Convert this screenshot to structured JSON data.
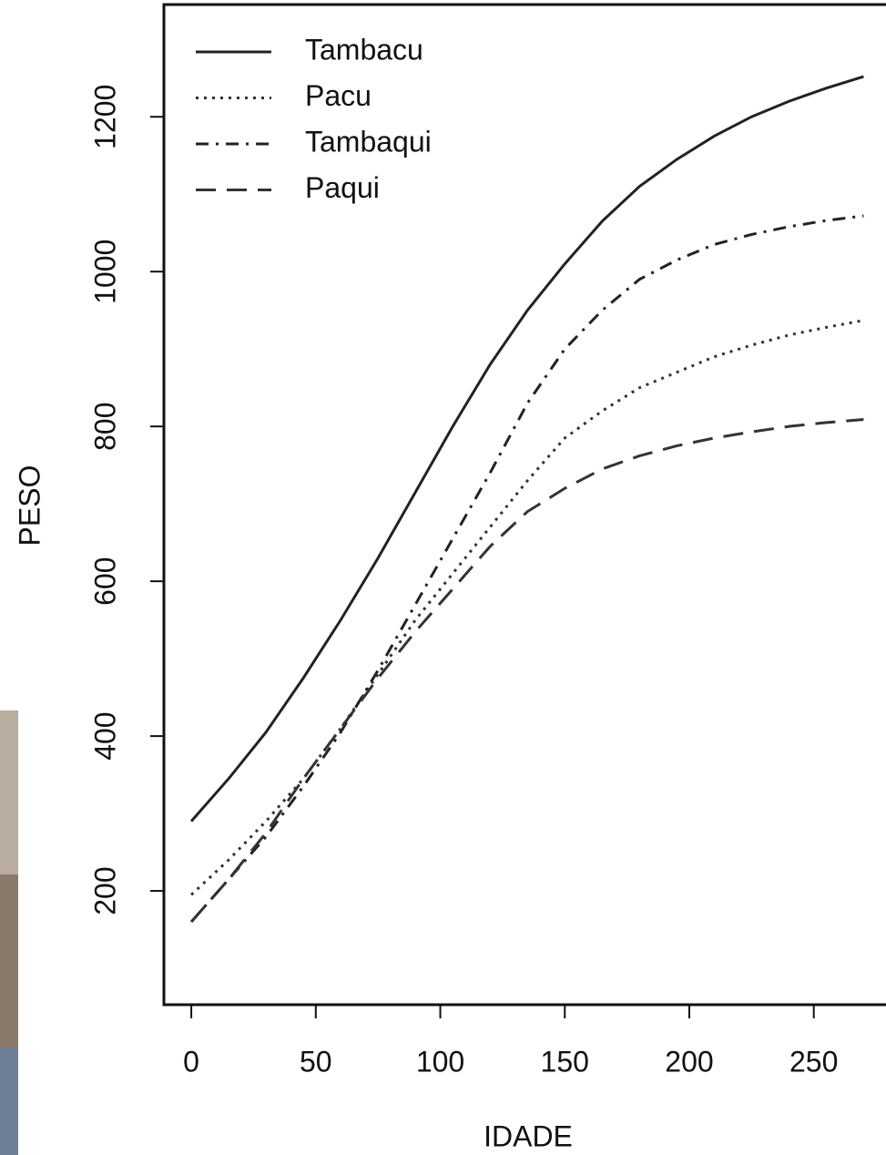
{
  "chart_data": {
    "type": "line",
    "x_label": "IDADE",
    "y_label": "PESO",
    "x": [
      0,
      15,
      30,
      45,
      60,
      75,
      90,
      105,
      120,
      135,
      150,
      165,
      180,
      195,
      210,
      225,
      240,
      255,
      270
    ],
    "series": [
      {
        "name": "Tambacu",
        "color": "#222222",
        "line_style": "solid",
        "values": [
          290,
          345,
          405,
          475,
          550,
          630,
          715,
          800,
          880,
          950,
          1010,
          1065,
          1110,
          1145,
          1175,
          1200,
          1220,
          1237,
          1252
        ]
      },
      {
        "name": "Pacu",
        "color": "#333333",
        "line_style": "dotted",
        "values": [
          195,
          240,
          290,
          345,
          410,
          480,
          550,
          610,
          670,
          730,
          785,
          820,
          850,
          870,
          890,
          905,
          918,
          928,
          937
        ]
      },
      {
        "name": "Tambaqui",
        "color": "#222222",
        "line_style": "dashdot",
        "values": [
          160,
          215,
          270,
          335,
          405,
          485,
          570,
          655,
          740,
          830,
          900,
          950,
          990,
          1015,
          1035,
          1048,
          1058,
          1066,
          1072
        ]
      },
      {
        "name": "Paqui",
        "color": "#333333",
        "line_style": "dashed",
        "values": [
          160,
          215,
          275,
          345,
          410,
          475,
          535,
          590,
          645,
          690,
          720,
          745,
          762,
          775,
          785,
          793,
          800,
          805,
          809
        ]
      }
    ],
    "xlim": [
      -11,
      279
    ],
    "xticks": [
      0,
      50,
      100,
      150,
      200,
      250
    ],
    "ylim": [
      53,
      1345
    ],
    "yticks": [
      200,
      400,
      600,
      800,
      1000,
      1200
    ],
    "legend": "top-left",
    "grid": false
  }
}
